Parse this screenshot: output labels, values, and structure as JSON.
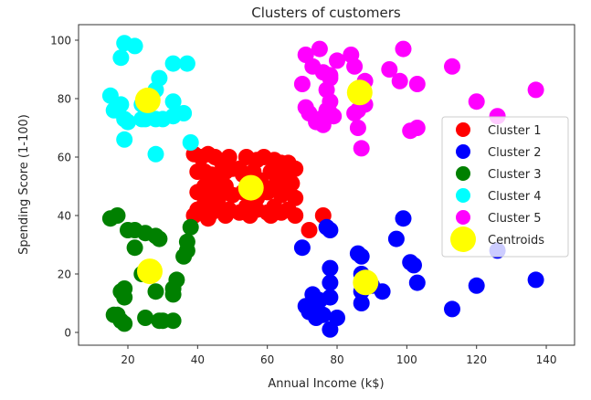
{
  "chart_data": {
    "type": "scatter",
    "title": "Clusters of customers",
    "xlabel": "Annual Income (k$)",
    "ylabel": "Spending Score (1-100)",
    "xlim": [
      6,
      145
    ],
    "ylim": [
      -4.5,
      105
    ],
    "xticks": [
      20,
      40,
      60,
      80,
      100,
      120,
      140
    ],
    "yticks": [
      0,
      20,
      40,
      60,
      80,
      100
    ],
    "grid": false,
    "legend_position": "center right",
    "point_size": 9,
    "centroid_size": 14,
    "series": [
      {
        "name": "Cluster 1",
        "color": "#ff0000",
        "points": [
          [
            39,
            61
          ],
          [
            41,
            60
          ],
          [
            43,
            61
          ],
          [
            45,
            60
          ],
          [
            47,
            58
          ],
          [
            49,
            60
          ],
          [
            52,
            56
          ],
          [
            54,
            60
          ],
          [
            57,
            59
          ],
          [
            59,
            60
          ],
          [
            62,
            59
          ],
          [
            64,
            58
          ],
          [
            66,
            58
          ],
          [
            68,
            56
          ],
          [
            40,
            55
          ],
          [
            42,
            55
          ],
          [
            44,
            54
          ],
          [
            46,
            52
          ],
          [
            48,
            55
          ],
          [
            50,
            56
          ],
          [
            53,
            54
          ],
          [
            56,
            55
          ],
          [
            58,
            52
          ],
          [
            61,
            55
          ],
          [
            63,
            52
          ],
          [
            65,
            54
          ],
          [
            67,
            51
          ],
          [
            40,
            48
          ],
          [
            42,
            50
          ],
          [
            44,
            48
          ],
          [
            46,
            46
          ],
          [
            48,
            50
          ],
          [
            50,
            47
          ],
          [
            53,
            48
          ],
          [
            55,
            50
          ],
          [
            57,
            46
          ],
          [
            60,
            48
          ],
          [
            62,
            50
          ],
          [
            64,
            47
          ],
          [
            66,
            48
          ],
          [
            68,
            46
          ],
          [
            40,
            42
          ],
          [
            42,
            44
          ],
          [
            44,
            41
          ],
          [
            46,
            43
          ],
          [
            49,
            42
          ],
          [
            52,
            41
          ],
          [
            54,
            43
          ],
          [
            57,
            42
          ],
          [
            60,
            41
          ],
          [
            62,
            43
          ],
          [
            64,
            41
          ],
          [
            66,
            42
          ],
          [
            68,
            40
          ],
          [
            39,
            40
          ],
          [
            43,
            39
          ],
          [
            48,
            40
          ],
          [
            55,
            40
          ],
          [
            61,
            40
          ],
          [
            72,
            35
          ],
          [
            76,
            40
          ]
        ]
      },
      {
        "name": "Cluster 2",
        "color": "#0000ff",
        "points": [
          [
            70,
            29
          ],
          [
            77,
            36
          ],
          [
            78,
            35
          ],
          [
            78,
            22
          ],
          [
            78,
            17
          ],
          [
            78,
            12
          ],
          [
            73,
            10
          ],
          [
            72,
            7
          ],
          [
            74,
            5
          ],
          [
            71,
            9
          ],
          [
            73,
            13
          ],
          [
            75,
            11
          ],
          [
            76,
            6
          ],
          [
            78,
            1
          ],
          [
            80,
            5
          ],
          [
            86,
            27
          ],
          [
            87,
            26
          ],
          [
            87,
            20
          ],
          [
            87,
            14
          ],
          [
            87,
            10
          ],
          [
            88,
            17
          ],
          [
            90,
            16
          ],
          [
            93,
            14
          ],
          [
            97,
            32
          ],
          [
            99,
            39
          ],
          [
            101,
            24
          ],
          [
            102,
            23
          ],
          [
            103,
            17
          ],
          [
            113,
            8
          ],
          [
            120,
            16
          ],
          [
            126,
            28
          ],
          [
            137,
            18
          ]
        ]
      },
      {
        "name": "Cluster 3",
        "color": "#008000",
        "points": [
          [
            15,
            39
          ],
          [
            17,
            40
          ],
          [
            20,
            35
          ],
          [
            22,
            35
          ],
          [
            25,
            34
          ],
          [
            22,
            29
          ],
          [
            28,
            33
          ],
          [
            29,
            32
          ],
          [
            38,
            36
          ],
          [
            37,
            31
          ],
          [
            37,
            28
          ],
          [
            36,
            26
          ],
          [
            18,
            14
          ],
          [
            19,
            15
          ],
          [
            19,
            12
          ],
          [
            24,
            20
          ],
          [
            28,
            14
          ],
          [
            33,
            15
          ],
          [
            34,
            18
          ],
          [
            33,
            13
          ],
          [
            16,
            6
          ],
          [
            17,
            6
          ],
          [
            18,
            4
          ],
          [
            19,
            3
          ],
          [
            25,
            5
          ],
          [
            29,
            4
          ],
          [
            30,
            4
          ],
          [
            33,
            4
          ]
        ]
      },
      {
        "name": "Cluster 4",
        "color": "#00ffff",
        "points": [
          [
            19,
            99
          ],
          [
            22,
            98
          ],
          [
            18,
            94
          ],
          [
            33,
            92
          ],
          [
            37,
            92
          ],
          [
            29,
            87
          ],
          [
            28,
            83
          ],
          [
            15,
            81
          ],
          [
            18,
            78
          ],
          [
            17,
            76
          ],
          [
            19,
            73
          ],
          [
            20,
            72
          ],
          [
            16,
            76
          ],
          [
            24,
            73
          ],
          [
            24,
            78
          ],
          [
            25,
            73
          ],
          [
            28,
            73
          ],
          [
            30,
            73
          ],
          [
            33,
            74
          ],
          [
            36,
            75
          ],
          [
            33,
            79
          ],
          [
            19,
            66
          ],
          [
            28,
            61
          ],
          [
            38,
            65
          ]
        ]
      },
      {
        "name": "Cluster 5",
        "color": "#ff00ff",
        "points": [
          [
            71,
            95
          ],
          [
            73,
            91
          ],
          [
            70,
            85
          ],
          [
            75,
            97
          ],
          [
            76,
            89
          ],
          [
            78,
            88
          ],
          [
            80,
            93
          ],
          [
            84,
            95
          ],
          [
            85,
            91
          ],
          [
            88,
            86
          ],
          [
            95,
            90
          ],
          [
            98,
            86
          ],
          [
            99,
            97
          ],
          [
            103,
            85
          ],
          [
            113,
            91
          ],
          [
            71,
            77
          ],
          [
            72,
            75
          ],
          [
            74,
            72
          ],
          [
            75,
            73
          ],
          [
            76,
            71
          ],
          [
            77,
            76
          ],
          [
            78,
            79
          ],
          [
            78,
            75
          ],
          [
            79,
            74
          ],
          [
            77,
            83
          ],
          [
            78,
            87
          ],
          [
            86,
            81
          ],
          [
            86,
            76
          ],
          [
            85,
            75
          ],
          [
            86,
            70
          ],
          [
            87,
            63
          ],
          [
            88,
            78
          ],
          [
            101,
            69
          ],
          [
            103,
            70
          ],
          [
            120,
            79
          ],
          [
            126,
            74
          ],
          [
            137,
            83
          ]
        ]
      },
      {
        "name": "Centroids",
        "color": "#ffff00",
        "points": [
          [
            55.3,
            49.5
          ],
          [
            88.2,
            17.1
          ],
          [
            26.3,
            20.9
          ],
          [
            25.7,
            79.4
          ],
          [
            86.5,
            82.1
          ]
        ]
      }
    ]
  },
  "legend": {
    "entries": [
      {
        "label": "Cluster 1",
        "color": "#ff0000"
      },
      {
        "label": "Cluster 2",
        "color": "#0000ff"
      },
      {
        "label": "Cluster 3",
        "color": "#008000"
      },
      {
        "label": "Cluster 4",
        "color": "#00ffff"
      },
      {
        "label": "Cluster 5",
        "color": "#ff00ff"
      },
      {
        "label": "Centroids",
        "color": "#ffff00"
      }
    ]
  }
}
